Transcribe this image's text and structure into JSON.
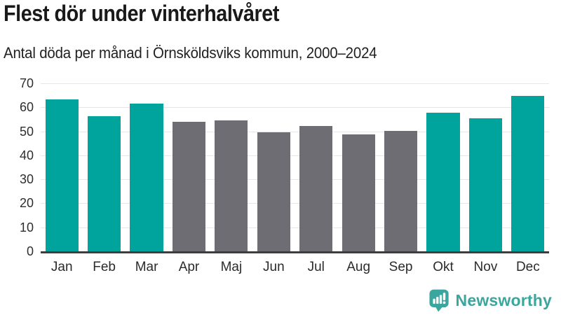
{
  "header": {
    "title": "Flest dör under vinterhalvåret",
    "subtitle": "Antal döda per månad i Örnsköldsviks kommun, 2000–2024"
  },
  "chart_data": {
    "type": "bar",
    "categories": [
      "Jan",
      "Feb",
      "Mar",
      "Apr",
      "Maj",
      "Jun",
      "Jul",
      "Aug",
      "Sep",
      "Okt",
      "Nov",
      "Dec"
    ],
    "values": [
      63.3,
      56.3,
      61.5,
      53.9,
      54.5,
      49.5,
      52.2,
      48.8,
      50.2,
      57.8,
      55.4,
      64.8
    ],
    "highlighted": [
      true,
      true,
      true,
      false,
      false,
      false,
      false,
      false,
      false,
      true,
      true,
      true
    ],
    "title": "Flest dör under vinterhalvåret",
    "subtitle": "Antal döda per månad i Örnsköldsviks kommun, 2000–2024",
    "xlabel": "",
    "ylabel": "",
    "ylim": [
      0,
      70
    ],
    "yticks": [
      0,
      10,
      20,
      30,
      40,
      50,
      60,
      70
    ],
    "grid": true,
    "legend": false,
    "colors": {
      "highlight": "#00a49c",
      "default": "#6f6d74",
      "axis": "#3d3d3d",
      "gridline": "#e7e7e7"
    }
  },
  "footer": {
    "brand": "Newsworthy",
    "logo_icon": "bar-chart-speech-bubble-icon",
    "brand_color": "#3aa69e"
  }
}
